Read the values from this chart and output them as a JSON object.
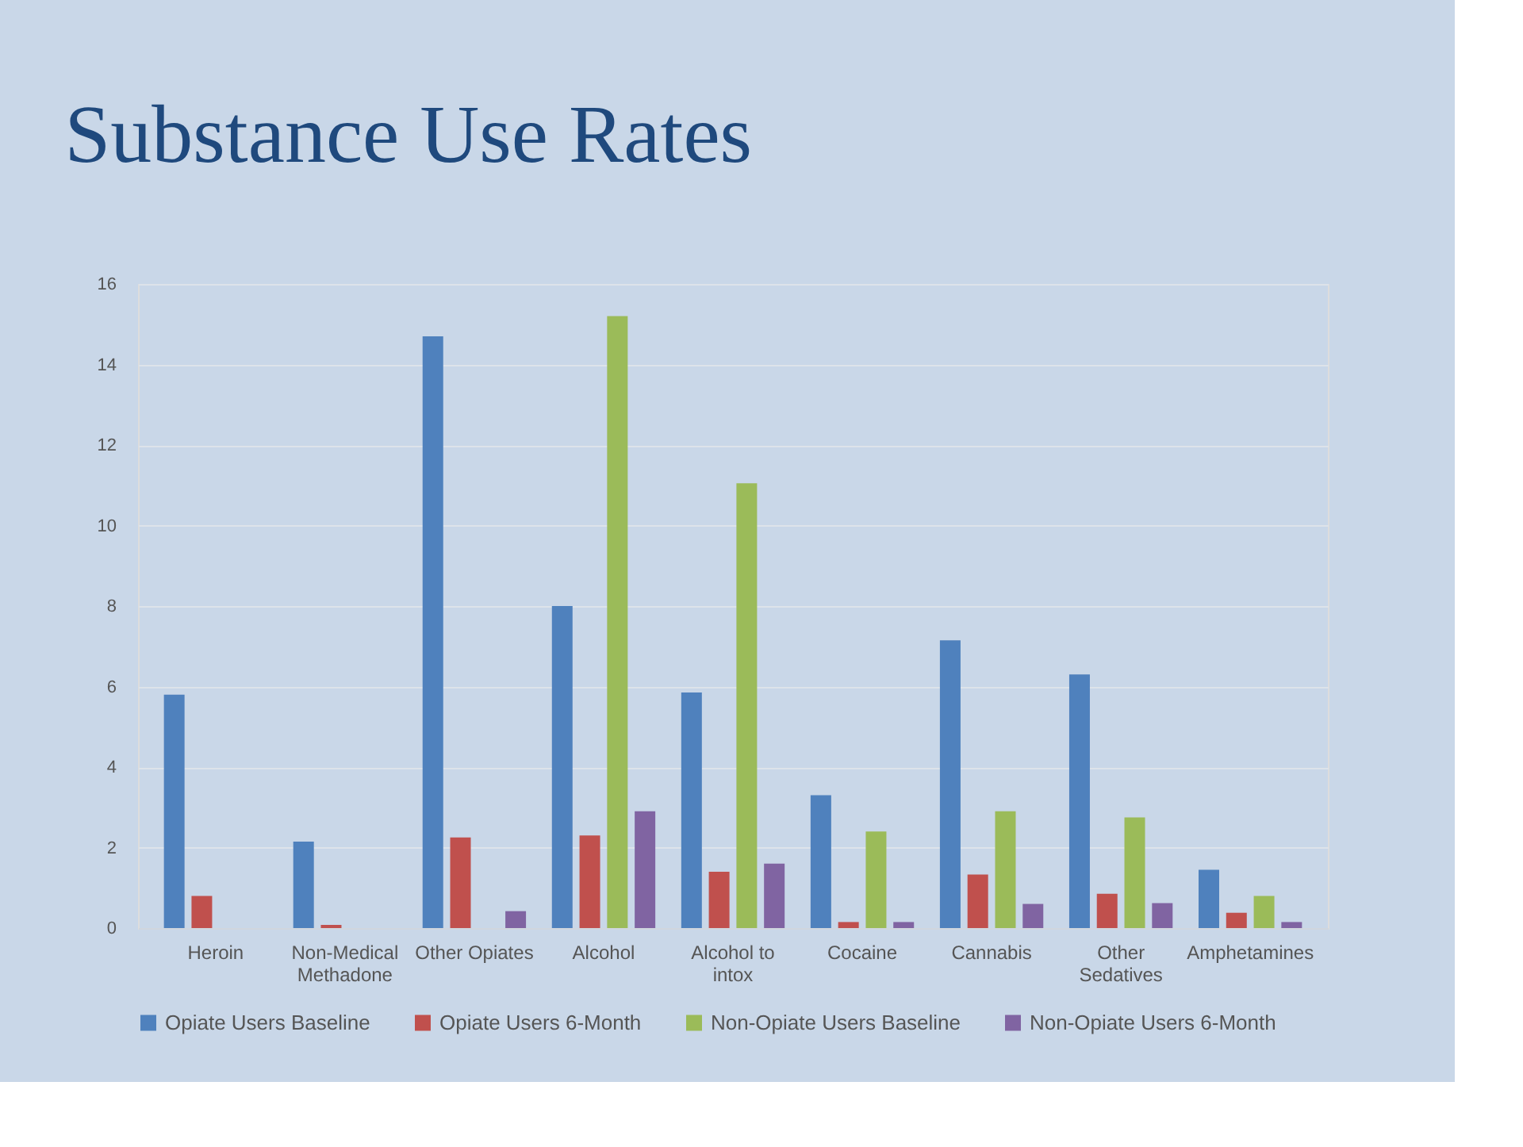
{
  "chart_data": {
    "type": "bar",
    "title": "Substance Use Rates",
    "categories": [
      "Heroin",
      "Non-Medical Methadone",
      "Other Opiates",
      "Alcohol",
      "Alcohol to intox",
      "Cocaine",
      "Cannabis",
      "Other Sedatives",
      "Amphetamines"
    ],
    "series": [
      {
        "name": "Opiate Users Baseline",
        "color": "#4f81bd",
        "values": [
          5.8,
          2.15,
          14.7,
          8.0,
          5.85,
          3.3,
          7.15,
          6.3,
          1.45
        ]
      },
      {
        "name": "Opiate Users 6-Month",
        "color": "#c0504d",
        "values": [
          0.8,
          0.08,
          2.25,
          2.3,
          1.4,
          0.15,
          1.33,
          0.85,
          0.38
        ]
      },
      {
        "name": "Non-Opiate Users Baseline",
        "color": "#9bbb59",
        "values": [
          0,
          0,
          0,
          15.2,
          11.05,
          2.4,
          2.9,
          2.75,
          0.8
        ]
      },
      {
        "name": "Non-Opiate Users 6-Month",
        "color": "#8064a2",
        "values": [
          0,
          0,
          0.42,
          2.9,
          1.6,
          0.15,
          0.6,
          0.62,
          0.15
        ]
      }
    ],
    "ylim": [
      0,
      16
    ],
    "yticks": [
      0,
      2,
      4,
      6,
      8,
      10,
      12,
      14,
      16
    ],
    "grid": "y",
    "legend": "bottom"
  }
}
